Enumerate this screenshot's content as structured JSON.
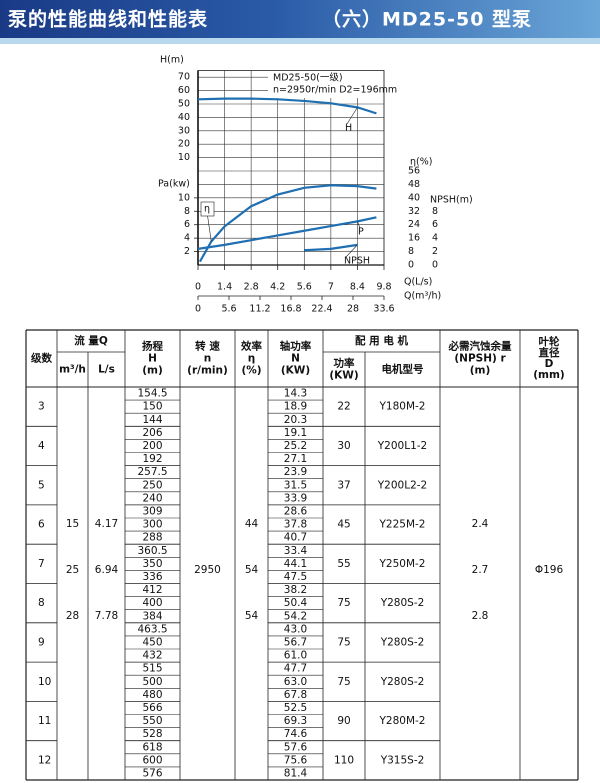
{
  "header": {
    "left": "泵的性能曲线和性能表",
    "right": "（六）MD25-50 型泵"
  },
  "chart_data": [
    {
      "type": "line",
      "ylabel": "H(m)",
      "xlim": [
        0,
        9.8
      ],
      "ylim": [
        0,
        75
      ],
      "yticks": [
        10,
        20,
        30,
        40,
        50,
        60,
        70
      ],
      "annotation": [
        "MD25-50(一级)",
        "n=2950r/min D2=196mm"
      ],
      "series": [
        {
          "name": "H",
          "color": "#1f6fb2",
          "axis": "y",
          "x": [
            0,
            1.4,
            2.8,
            4.2,
            5.6,
            7,
            8.4,
            9.4
          ],
          "values": [
            53.5,
            54,
            54,
            53.5,
            52.3,
            50.5,
            47.5,
            43
          ]
        }
      ]
    },
    {
      "type": "line",
      "xlabel": "Q(L/s)",
      "xlim": [
        0,
        9.8
      ],
      "xticks": [
        0,
        1.4,
        2.8,
        4.2,
        5.6,
        7,
        8.4,
        9.8
      ],
      "x2label": "Q(m³/h)",
      "x2lim": [
        0,
        33.6
      ],
      "x2ticks": [
        0,
        5.6,
        11.2,
        16.8,
        22.4,
        28,
        33.6
      ],
      "ylabel": "Pa(kw)",
      "ylim": [
        0,
        14
      ],
      "yticks": [
        2,
        4,
        6,
        8,
        10
      ],
      "y2label": "η(%)",
      "y2lim": [
        0,
        56
      ],
      "y2ticks": [
        0,
        8,
        16,
        24,
        32,
        40,
        48,
        56
      ],
      "y3label": "NPSH(m)",
      "y3lim": [
        0,
        14
      ],
      "y3ticks": [
        0,
        2,
        4,
        6,
        8
      ],
      "series": [
        {
          "name": "η",
          "color": "#1f6fb2",
          "axis": "y2",
          "x": [
            0.1,
            0.7,
            1.4,
            2.8,
            4.2,
            5.6,
            7,
            8.4,
            9.4
          ],
          "values": [
            2,
            14,
            23,
            35,
            42,
            46,
            47.5,
            47,
            45.5
          ]
        },
        {
          "name": "P",
          "color": "#1f6fb2",
          "axis": "y",
          "x": [
            0,
            1.4,
            2.8,
            4.2,
            5.6,
            7,
            8.4,
            9.4
          ],
          "values": [
            2.4,
            3.0,
            3.7,
            4.4,
            5.1,
            5.8,
            6.5,
            7.1
          ]
        },
        {
          "name": "NPSH",
          "color": "#1f6fb2",
          "axis": "y3",
          "x": [
            5.6,
            7,
            8.4
          ],
          "values": [
            2.2,
            2.4,
            3.0
          ]
        }
      ]
    }
  ],
  "table": {
    "header": {
      "stage": [
        "级数"
      ],
      "flow": [
        "流 量Q"
      ],
      "flow_m3h": [
        "m³/h"
      ],
      "flow_ls": [
        "L/s"
      ],
      "head": [
        "扬程",
        "H",
        "(m)"
      ],
      "speed": [
        "转 速",
        "n",
        "(r/min)"
      ],
      "eff": [
        "效率",
        "η",
        "(%)"
      ],
      "power": [
        "轴功率",
        "N",
        "(KW)"
      ],
      "motor": [
        "配 用 电 机"
      ],
      "motor_kw": [
        "功率",
        "(KW)"
      ],
      "motor_model": [
        "电机型号"
      ],
      "npshr": [
        "必需汽蚀余量",
        "(NPSH) r",
        "(m)"
      ],
      "impeller": [
        "叶轮",
        "直径",
        "D",
        "(mm)"
      ]
    },
    "flow_m3h": [
      "15",
      "25",
      "28"
    ],
    "flow_ls": [
      "4.17",
      "6.94",
      "7.78"
    ],
    "speed": "2950",
    "eff": [
      "44",
      "54",
      "54"
    ],
    "npshr": [
      "2.4",
      "2.7",
      "2.8"
    ],
    "impeller": "Φ196",
    "rows": [
      {
        "stage": "3",
        "head": [
          "154.5",
          "150",
          "144"
        ],
        "power": [
          "14.3",
          "18.9",
          "20.3"
        ],
        "motor_kw": "22",
        "motor_model": "Y180M-2"
      },
      {
        "stage": "4",
        "head": [
          "206",
          "200",
          "192"
        ],
        "power": [
          "19.1",
          "25.2",
          "27.1"
        ],
        "motor_kw": "30",
        "motor_model": "Y200L1-2"
      },
      {
        "stage": "5",
        "head": [
          "257.5",
          "250",
          "240"
        ],
        "power": [
          "23.9",
          "31.5",
          "33.9"
        ],
        "motor_kw": "37",
        "motor_model": "Y200L2-2"
      },
      {
        "stage": "6",
        "head": [
          "309",
          "300",
          "288"
        ],
        "power": [
          "28.6",
          "37.8",
          "40.7"
        ],
        "motor_kw": "45",
        "motor_model": "Y225M-2"
      },
      {
        "stage": "7",
        "head": [
          "360.5",
          "350",
          "336"
        ],
        "power": [
          "33.4",
          "44.1",
          "47.5"
        ],
        "motor_kw": "55",
        "motor_model": "Y250M-2"
      },
      {
        "stage": "8",
        "head": [
          "412",
          "400",
          "384"
        ],
        "power": [
          "38.2",
          "50.4",
          "54.2"
        ],
        "motor_kw": "75",
        "motor_model": "Y280S-2"
      },
      {
        "stage": "9",
        "head": [
          "463.5",
          "450",
          "432"
        ],
        "power": [
          "43.0",
          "56.7",
          "61.0"
        ],
        "motor_kw": "75",
        "motor_model": "Y280S-2"
      },
      {
        "stage": "10",
        "head": [
          "515",
          "500",
          "480"
        ],
        "power": [
          "47.7",
          "63.0",
          "67.8"
        ],
        "motor_kw": "75",
        "motor_model": "Y280S-2"
      },
      {
        "stage": "11",
        "head": [
          "566",
          "550",
          "528"
        ],
        "power": [
          "52.5",
          "69.3",
          "74.6"
        ],
        "motor_kw": "90",
        "motor_model": "Y280M-2"
      },
      {
        "stage": "12",
        "head": [
          "618",
          "600",
          "576"
        ],
        "power": [
          "57.6",
          "75.6",
          "81.4"
        ],
        "motor_kw": "110",
        "motor_model": "Y315S-2"
      }
    ]
  }
}
